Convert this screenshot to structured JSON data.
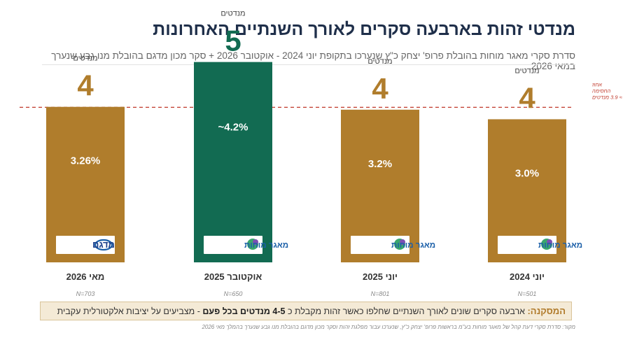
{
  "title": "מנדטי זהות בארבעה סקרים לאורך השנתיים האחרונות",
  "subtitle": "סדרת סקרי מאגר מוחות בהובלת פרופ' יצחק כ\"ץ שנערכו בתקופת יוני 2024 - אוקטובר 2026 + סקר מכון מדגם בהובלת מנו גבע שנערך במאי 2026",
  "threshold_label": "אחוז החסימה ≈ 3.9 מנדטים",
  "conclusion": {
    "label": "המסקנה:",
    "text_before": "ארבעה סקרים שונים לאורך השנתיים שחלפו כאשר זהות מקבלת כ",
    "highlight": "4-5 מנדטים בכל פעם",
    "text_after": "- מצביעים על יציבות אלקטורלית עקבית"
  },
  "source": "מקור: סדרת סקרי דעת קהל של מאגר מוחות בע\"מ בראשות פרופ' יצחק כ\"ץ, שנערכו עבור מפלגת זהות וסקר מכון מדגם בהובלת מנו גבע שנערך בהמלך מאי 2026",
  "colors": {
    "bar": "#b07d2c",
    "highlight_bar": "#126b52",
    "seats_gold": "#b07d2c",
    "seats_green": "#126b52",
    "threshold": "#c0392b"
  },
  "chart_data": {
    "type": "bar",
    "categories": [
      "מאי 2026",
      "אוקטובר 2025",
      "יוני 2025",
      "יוני 2024"
    ],
    "seats_label": "מנדטים",
    "seats": [
      4,
      5,
      4,
      4
    ],
    "percent_labels": [
      "3.26%",
      "~4.2%",
      "3.2%",
      "3.0%"
    ],
    "values": [
      3.26,
      4.2,
      3.2,
      3.0
    ],
    "sample_sizes": [
      "N=703",
      "N=650",
      "N=801",
      "N=501"
    ],
    "pollsters": [
      "מדגם",
      "מאגר מוחות",
      "מאגר מוחות",
      "מאגר מוחות"
    ],
    "pollster_icons": [
      "madgam-logo",
      "maagar-mochot-logo",
      "maagar-mochot-logo",
      "maagar-mochot-logo"
    ],
    "highlighted_index": 1,
    "threshold_value": 3.25,
    "ylim": [
      0,
      4.4
    ]
  }
}
